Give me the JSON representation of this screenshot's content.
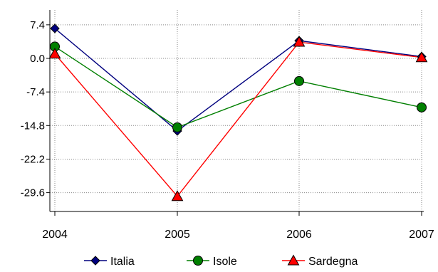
{
  "chart_data": {
    "type": "line",
    "title": "",
    "xlabel": "",
    "ylabel": "",
    "categories": [
      "2004",
      "2005",
      "2006",
      "2007"
    ],
    "y_ticks": [
      7.4,
      0.0,
      -7.4,
      -14.8,
      -22.2,
      -29.6
    ],
    "y_tick_labels": [
      "7.4",
      "0.0",
      "-7.4",
      "-14.8",
      "-22.2",
      "-29.6"
    ],
    "ylim": [
      -34.0,
      10.0
    ],
    "grid": "horizontal dotted",
    "legend_position": "bottom",
    "series": [
      {
        "name": "Italia",
        "color": "#00007f",
        "marker": "diamond",
        "values": [
          6.6,
          -16.0,
          3.9,
          0.4
        ]
      },
      {
        "name": "Isole",
        "color": "#007f00",
        "marker": "circle",
        "values": [
          2.6,
          -15.2,
          -5.0,
          -10.8
        ]
      },
      {
        "name": "Sardegna",
        "color": "#ff0000",
        "marker": "triangle",
        "values": [
          1.0,
          -30.4,
          3.6,
          0.2
        ]
      }
    ]
  }
}
